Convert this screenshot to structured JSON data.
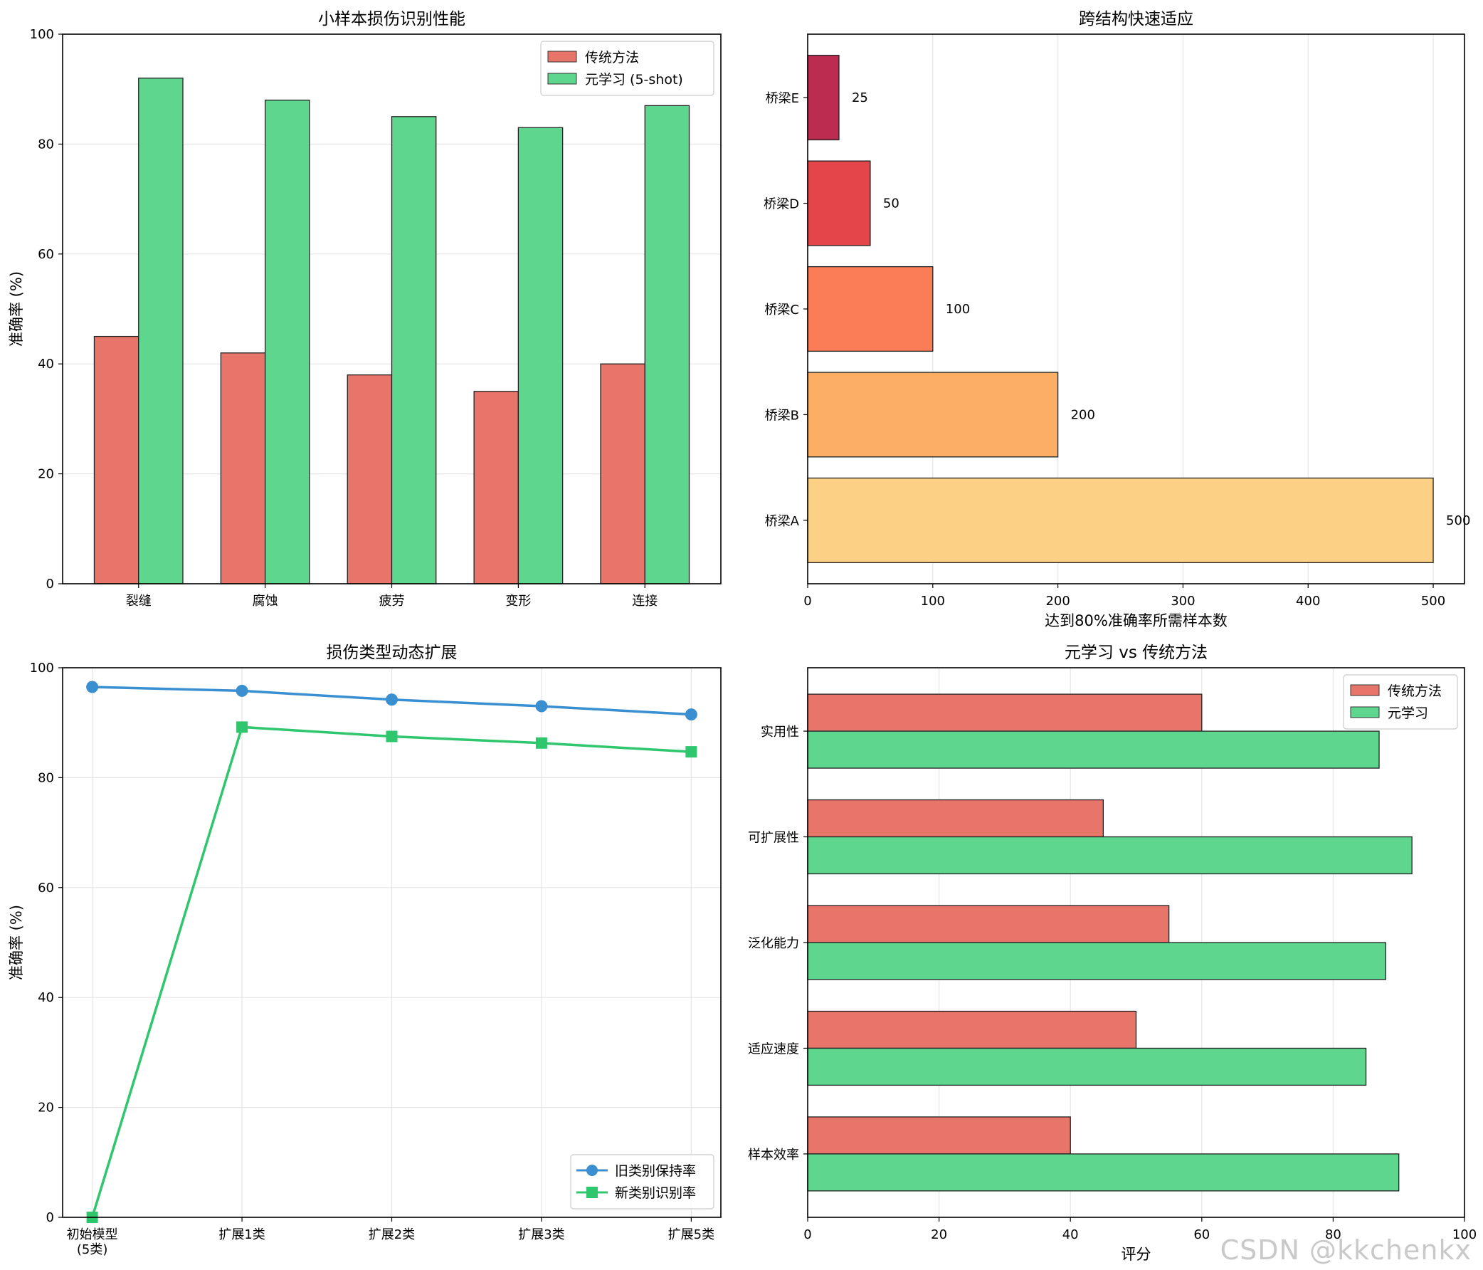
{
  "watermark": "CSDN @kkchenkx",
  "colors": {
    "traditional": "#e8756a",
    "meta": "#5fd68e",
    "old_line": "#3a8fd1",
    "new_line": "#2fc66e",
    "bridges": [
      "#fdd185",
      "#fcae65",
      "#fa7d58",
      "#e4454a",
      "#bc2b50"
    ]
  },
  "chart_data": [
    {
      "type": "bar",
      "title": "小样本损伤识别性能",
      "xlabel": "",
      "ylabel": "准确率 (%)",
      "categories": [
        "裂缝",
        "腐蚀",
        "疲劳",
        "变形",
        "连接"
      ],
      "series": [
        {
          "name": "传统方法",
          "values": [
            45,
            42,
            38,
            35,
            40
          ]
        },
        {
          "name": "元学习 (5-shot)",
          "values": [
            92,
            88,
            85,
            83,
            87
          ]
        }
      ],
      "ylim": [
        0,
        100
      ],
      "yticks": [
        0,
        20,
        40,
        60,
        80,
        100
      ],
      "grid": true,
      "legend": "top-right"
    },
    {
      "type": "bar",
      "orientation": "horizontal",
      "title": "跨结构快速适应",
      "xlabel": "达到80%准确率所需样本数",
      "ylabel": "",
      "categories": [
        "桥梁A",
        "桥梁B",
        "桥梁C",
        "桥梁D",
        "桥梁E"
      ],
      "values": [
        500,
        200,
        100,
        50,
        25
      ],
      "data_labels": [
        "500",
        "200",
        "100",
        "50",
        "25"
      ],
      "xlim": [
        0,
        525
      ],
      "xticks": [
        0,
        100,
        200,
        300,
        400,
        500
      ],
      "grid": true
    },
    {
      "type": "line",
      "title": "损伤类型动态扩展",
      "xlabel": "",
      "ylabel": "准确率 (%)",
      "categories": [
        "初始模型\n(5类)",
        "扩展1类",
        "扩展2类",
        "扩展3类",
        "扩展5类"
      ],
      "series": [
        {
          "name": "旧类别保持率",
          "marker": "circle",
          "values": [
            96.5,
            95.8,
            94.2,
            93.0,
            91.5
          ]
        },
        {
          "name": "新类别识别率",
          "marker": "square",
          "values": [
            0,
            89.2,
            87.5,
            86.3,
            84.7
          ]
        }
      ],
      "ylim": [
        0,
        100
      ],
      "yticks": [
        0,
        20,
        40,
        60,
        80,
        100
      ],
      "grid": true,
      "legend": "bottom-right"
    },
    {
      "type": "bar",
      "orientation": "horizontal",
      "title": "元学习 vs 传统方法",
      "xlabel": "评分",
      "ylabel": "",
      "categories": [
        "样本效率",
        "适应速度",
        "泛化能力",
        "可扩展性",
        "实用性"
      ],
      "series": [
        {
          "name": "传统方法",
          "values": [
            40,
            50,
            55,
            45,
            60
          ]
        },
        {
          "name": "元学习",
          "values": [
            90,
            85,
            88,
            92,
            87
          ]
        }
      ],
      "xlim": [
        0,
        100
      ],
      "xticks": [
        0,
        20,
        40,
        60,
        80,
        100
      ],
      "grid": true,
      "legend": "top-right"
    }
  ]
}
